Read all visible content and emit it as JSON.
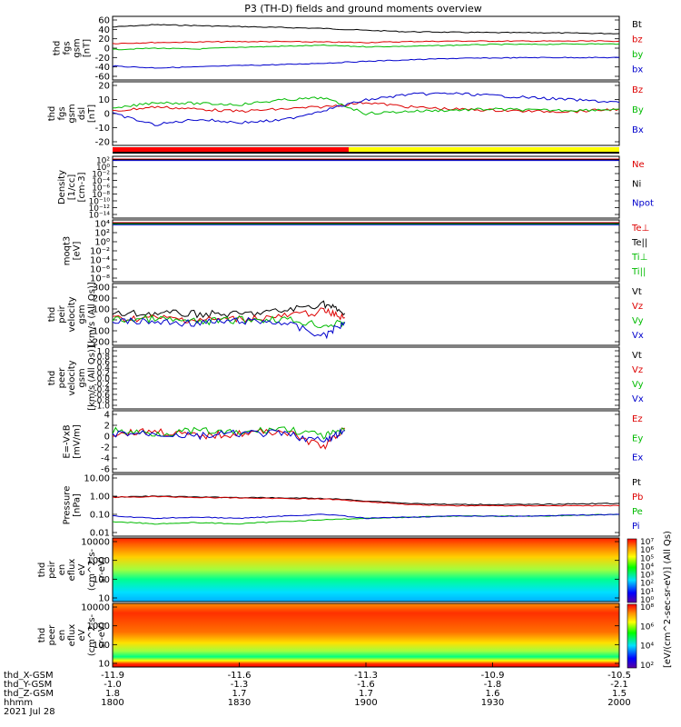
{
  "title": "P3 (TH-D) fields and ground moments overview",
  "colorbar_label": "[eV/(cm^2-sec-sr-eV)] (All Qs)",
  "time": {
    "date": "2021 Jul 28",
    "rows": [
      {
        "label": "thd_X-GSM",
        "values": [
          "-11.9",
          "-11.6",
          "-11.3",
          "-10.9",
          "-10.5"
        ]
      },
      {
        "label": "thd_Y-GSM",
        "values": [
          "-1.0",
          "-1.3",
          "-1.6",
          "-1.8",
          "-2.1"
        ]
      },
      {
        "label": "thd_Z-GSM",
        "values": [
          "1.8",
          "1.7",
          "1.7",
          "1.6",
          "1.5"
        ]
      },
      {
        "label": "hhmm",
        "values": [
          "1800",
          "1830",
          "1900",
          "1930",
          "2000"
        ]
      }
    ]
  },
  "panels": [
    {
      "id": "fgs",
      "ylabel": [
        "thd",
        "fgs",
        "gsm",
        "[nT]"
      ],
      "yticks": [
        "60",
        "40",
        "20",
        "0",
        "-20",
        "-40",
        "-60"
      ],
      "legend": [
        {
          "text": "Bt",
          "color": "#000000"
        },
        {
          "text": "bz",
          "color": "#dd0000"
        },
        {
          "text": "by",
          "color": "#00bb00"
        },
        {
          "text": "bx",
          "color": "#0000cc"
        }
      ]
    },
    {
      "id": "fgs-dsl",
      "ylabel": [
        "thd",
        "fgs",
        "gsm",
        "dsl",
        "[nT]"
      ],
      "yticks": [
        "20",
        "10",
        "0",
        "-10",
        "-20"
      ],
      "legend": [
        {
          "text": "Bz",
          "color": "#dd0000"
        },
        {
          "text": "By",
          "color": "#00bb00"
        },
        {
          "text": "Bx",
          "color": "#0000cc"
        }
      ]
    },
    {
      "id": "density",
      "ylabel": [
        "Density",
        "[1/cc]",
        "[cm-3]"
      ],
      "yticks": [
        "10²",
        "10⁰",
        "10⁻²",
        "10⁻⁴",
        "10⁻⁶",
        "10⁻⁸",
        "10⁻¹⁰",
        "10⁻¹²",
        "10⁻¹⁴"
      ],
      "legend": [
        {
          "text": "Ne",
          "color": "#dd0000"
        },
        {
          "text": "Ni",
          "color": "#000000"
        },
        {
          "text": "Npot",
          "color": "#0000cc"
        }
      ]
    },
    {
      "id": "temperature",
      "ylabel": [
        "moqt3",
        "[eV]"
      ],
      "yticks": [
        "10⁴",
        "10²",
        "10⁰",
        "10⁻²",
        "10⁻⁴",
        "10⁻⁶",
        "10⁻⁸"
      ],
      "legend": [
        {
          "text": "Te⊥",
          "color": "#dd0000"
        },
        {
          "text": "Te||",
          "color": "#000000"
        },
        {
          "text": "Ti⊥",
          "color": "#00bb00"
        },
        {
          "text": "Ti||",
          "color": "#00bb00"
        }
      ]
    },
    {
      "id": "peir-velocity",
      "ylabel": [
        "thd",
        "peir",
        "velocity",
        "gsm",
        "[km/s (All Qs)]"
      ],
      "yticks": [
        "300",
        "200",
        "100",
        "0",
        "-100",
        "-200"
      ],
      "legend": [
        {
          "text": "Vt",
          "color": "#000000"
        },
        {
          "text": "Vz",
          "color": "#dd0000"
        },
        {
          "text": "Vy",
          "color": "#00bb00"
        },
        {
          "text": "Vx",
          "color": "#0000cc"
        }
      ]
    },
    {
      "id": "peer-velocity",
      "ylabel": [
        "thd",
        "peer",
        "velocity",
        "gsm",
        "[km/s (All Qs)]"
      ],
      "yticks": [
        "1.0",
        "0.8",
        "0.6",
        "0.4",
        "0.2",
        "0.0",
        "-0.2",
        "-0.4",
        "-0.6",
        "-0.8",
        "-1.0"
      ],
      "legend": [
        {
          "text": "Vt",
          "color": "#000000"
        },
        {
          "text": "Vz",
          "color": "#dd0000"
        },
        {
          "text": "Vy",
          "color": "#00bb00"
        },
        {
          "text": "Vx",
          "color": "#0000cc"
        }
      ]
    },
    {
      "id": "efield",
      "ylabel": [
        "E=-VxB",
        "[mV/m]"
      ],
      "yticks": [
        "4",
        "2",
        "0",
        "-2",
        "-4",
        "-6"
      ],
      "legend": [
        {
          "text": "Ez",
          "color": "#dd0000"
        },
        {
          "text": "Ey",
          "color": "#00bb00"
        },
        {
          "text": "Ex",
          "color": "#0000cc"
        }
      ]
    },
    {
      "id": "pressure",
      "ylabel": [
        "Pressure",
        "[nPa]"
      ],
      "yticks": [
        "10.00",
        "1.00",
        "0.10",
        "0.01"
      ],
      "legend": [
        {
          "text": "Pt",
          "color": "#000000"
        },
        {
          "text": "Pb",
          "color": "#dd0000"
        },
        {
          "text": "Pe",
          "color": "#00bb00"
        },
        {
          "text": "Pi",
          "color": "#0000cc"
        }
      ]
    },
    {
      "id": "peir-eflux",
      "ylabel": [
        "thd",
        "peir",
        "en",
        "eflux",
        "eV",
        "(cm^2-s-",
        "sr-eV)"
      ],
      "yticks": [
        "10000",
        "1000",
        "100",
        "10"
      ],
      "cbar_ticks": [
        "10⁷",
        "10⁶",
        "10⁵",
        "10⁴",
        "10³",
        "10²",
        "10¹",
        "10⁰"
      ]
    },
    {
      "id": "peer-eflux",
      "ylabel": [
        "thd",
        "peer",
        "en",
        "eflux",
        "eV",
        "(cm^2-s-",
        "sr-eV)"
      ],
      "yticks": [
        "10000",
        "1000",
        "100",
        "10"
      ],
      "cbar_ticks": [
        "10⁸",
        "10⁶",
        "10⁴",
        "10²"
      ]
    }
  ],
  "chart_data": [
    {
      "type": "line",
      "title": "P3 (TH-D) fields and ground moments overview",
      "ylabel": "thd fgs gsm [nT]",
      "x_hhmm": [
        "1800",
        "1830",
        "1900",
        "1930",
        "2000"
      ],
      "ylim": [
        -60,
        60
      ],
      "x": [
        1800,
        1810,
        1820,
        1830,
        1840,
        1850,
        1900,
        1910,
        1920,
        1930,
        1940,
        1950,
        2000
      ],
      "series": [
        {
          "name": "Bt",
          "color": "#000000",
          "values": [
            45,
            50,
            48,
            46,
            44,
            42,
            38,
            35,
            34,
            33,
            33,
            32,
            31
          ]
        },
        {
          "name": "bz",
          "color": "#dd0000",
          "values": [
            10,
            12,
            13,
            14,
            14,
            13,
            12,
            14,
            15,
            15,
            15,
            15,
            15
          ]
        },
        {
          "name": "by",
          "color": "#00bb00",
          "values": [
            -3,
            0,
            -2,
            2,
            4,
            6,
            3,
            4,
            6,
            8,
            8,
            9,
            9
          ]
        },
        {
          "name": "bx",
          "color": "#0000cc",
          "values": [
            -38,
            -42,
            -40,
            -37,
            -35,
            -32,
            -28,
            -25,
            -22,
            -21,
            -20,
            -20,
            -20
          ]
        }
      ]
    },
    {
      "type": "line",
      "ylabel": "thd fgs gsm dsl [nT]",
      "ylim": [
        -25,
        25
      ],
      "x": [
        1800,
        1810,
        1820,
        1830,
        1840,
        1850,
        1900,
        1910,
        1920,
        1930,
        1940,
        1950,
        2000
      ],
      "series": [
        {
          "name": "Bz",
          "color": "#dd0000",
          "values": [
            2,
            6,
            4,
            2,
            4,
            6,
            10,
            6,
            4,
            3,
            2,
            2,
            4
          ]
        },
        {
          "name": "By",
          "color": "#00bb00",
          "values": [
            4,
            10,
            9,
            8,
            12,
            14,
            0,
            2,
            3,
            4,
            3,
            3,
            4
          ]
        },
        {
          "name": "Bx",
          "color": "#0000cc",
          "values": [
            0,
            -10,
            -5,
            -8,
            -6,
            3,
            12,
            17,
            18,
            16,
            14,
            12,
            10
          ]
        }
      ]
    },
    {
      "type": "line",
      "ylabel": "thd peir velocity gsm [km/s (All Qs)]",
      "ylim": [
        -200,
        300
      ],
      "x": [
        1800,
        1810,
        1820,
        1830,
        1840,
        1850,
        1855
      ],
      "series": [
        {
          "name": "Vt",
          "color": "#000000",
          "values": [
            50,
            60,
            55,
            50,
            80,
            150,
            60
          ]
        },
        {
          "name": "Vz",
          "color": "#dd0000",
          "values": [
            10,
            20,
            0,
            10,
            30,
            80,
            20
          ]
        },
        {
          "name": "Vy",
          "color": "#00bb00",
          "values": [
            0,
            10,
            -20,
            0,
            10,
            -50,
            -30
          ]
        },
        {
          "name": "Vx",
          "color": "#0000cc",
          "values": [
            -10,
            -20,
            -30,
            -10,
            -20,
            -150,
            -20
          ]
        }
      ]
    },
    {
      "type": "line",
      "ylabel": "E=-VxB [mV/m]",
      "ylim": [
        -6,
        4
      ],
      "x": [
        1800,
        1810,
        1820,
        1830,
        1840,
        1850,
        1855
      ],
      "series": [
        {
          "name": "Ez",
          "color": "#dd0000",
          "values": [
            0.5,
            1,
            0,
            0.5,
            1,
            -2,
            1.5
          ]
        },
        {
          "name": "Ey",
          "color": "#00bb00",
          "values": [
            1,
            0.5,
            1,
            0.5,
            1.5,
            0,
            1
          ]
        },
        {
          "name": "Ex",
          "color": "#0000cc",
          "values": [
            0.5,
            0.5,
            0,
            0.5,
            0.5,
            -1,
            1
          ]
        }
      ]
    },
    {
      "type": "line",
      "ylabel": "Pressure [nPa]",
      "ylim": [
        0.01,
        10
      ],
      "yscale": "log",
      "x": [
        1800,
        1810,
        1820,
        1830,
        1840,
        1850,
        1900,
        1910,
        1920,
        1930,
        1940,
        1950,
        2000
      ],
      "series": [
        {
          "name": "Pt",
          "color": "#000000",
          "values": [
            0.9,
            1.0,
            0.9,
            0.85,
            0.8,
            0.75,
            0.55,
            0.4,
            0.35,
            0.35,
            0.35,
            0.38,
            0.4
          ]
        },
        {
          "name": "Pb",
          "color": "#dd0000",
          "values": [
            0.85,
            0.95,
            0.85,
            0.8,
            0.75,
            0.7,
            0.5,
            0.35,
            0.3,
            0.3,
            0.3,
            0.3,
            0.3
          ]
        },
        {
          "name": "Pe",
          "color": "#00bb00",
          "values": [
            0.04,
            0.03,
            0.035,
            0.03,
            0.04,
            0.05,
            0.06,
            0.07,
            0.08,
            0.08,
            0.08,
            0.09,
            0.1
          ]
        },
        {
          "name": "Pi",
          "color": "#0000cc",
          "values": [
            0.08,
            0.06,
            0.07,
            0.06,
            0.08,
            0.1,
            0.06,
            0.07,
            0.08,
            0.08,
            0.08,
            0.09,
            0.1
          ]
        }
      ]
    }
  ]
}
